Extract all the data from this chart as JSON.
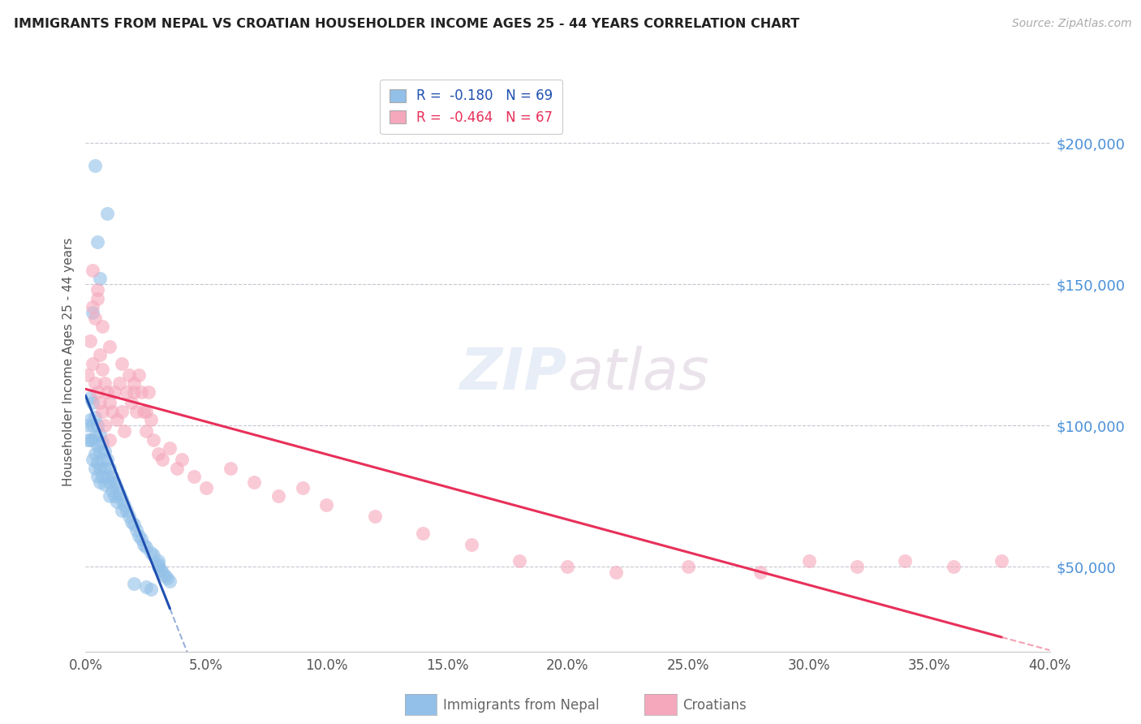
{
  "title": "IMMIGRANTS FROM NEPAL VS CROATIAN HOUSEHOLDER INCOME AGES 25 - 44 YEARS CORRELATION CHART",
  "source": "Source: ZipAtlas.com",
  "ylabel": "Householder Income Ages 25 - 44 years",
  "xlim": [
    0.0,
    0.4
  ],
  "ylim": [
    20000,
    225000
  ],
  "yticks": [
    50000,
    100000,
    150000,
    200000
  ],
  "xticks": [
    0.0,
    0.05,
    0.1,
    0.15,
    0.2,
    0.25,
    0.3,
    0.35,
    0.4
  ],
  "nepal_r": -0.18,
  "nepal_n": 69,
  "croatian_r": -0.464,
  "croatian_n": 67,
  "nepal_color": "#92c0e8",
  "croatian_color": "#f5a8bc",
  "nepal_line_color": "#2050b0",
  "croatian_line_color": "#e8305a",
  "background_color": "#ffffff",
  "grid_color": "#c0c0cc",
  "title_color": "#222222",
  "right_tick_color": "#4a90d9",
  "bottom_tick_color": "#555555",
  "nepal_x": [
    0.001,
    0.001,
    0.002,
    0.002,
    0.002,
    0.003,
    0.003,
    0.003,
    0.003,
    0.004,
    0.004,
    0.004,
    0.004,
    0.005,
    0.005,
    0.005,
    0.005,
    0.006,
    0.006,
    0.006,
    0.006,
    0.007,
    0.007,
    0.007,
    0.008,
    0.008,
    0.008,
    0.009,
    0.009,
    0.01,
    0.01,
    0.01,
    0.011,
    0.011,
    0.012,
    0.012,
    0.013,
    0.013,
    0.014,
    0.015,
    0.015,
    0.016,
    0.017,
    0.018,
    0.019,
    0.02,
    0.021,
    0.022,
    0.023,
    0.024,
    0.025,
    0.027,
    0.028,
    0.03,
    0.03,
    0.03,
    0.031,
    0.032,
    0.033,
    0.034,
    0.035,
    0.02,
    0.025,
    0.027,
    0.009,
    0.005,
    0.006,
    0.004,
    0.003
  ],
  "nepal_y": [
    100000,
    95000,
    110000,
    102000,
    95000,
    108000,
    100000,
    95000,
    88000,
    103000,
    96000,
    90000,
    85000,
    100000,
    93000,
    87000,
    82000,
    97000,
    91000,
    85000,
    80000,
    94000,
    88000,
    82000,
    91000,
    85000,
    79000,
    88000,
    82000,
    85000,
    80000,
    75000,
    82000,
    77000,
    80000,
    75000,
    78000,
    73000,
    76000,
    74000,
    70000,
    72000,
    70000,
    68000,
    66000,
    65000,
    63000,
    61000,
    60000,
    58000,
    57000,
    55000,
    54000,
    52000,
    51000,
    50000,
    49000,
    48000,
    47000,
    46000,
    45000,
    44000,
    43000,
    42000,
    175000,
    165000,
    152000,
    192000,
    140000
  ],
  "croatian_x": [
    0.001,
    0.002,
    0.003,
    0.003,
    0.004,
    0.004,
    0.005,
    0.005,
    0.006,
    0.006,
    0.007,
    0.007,
    0.008,
    0.008,
    0.009,
    0.01,
    0.01,
    0.011,
    0.012,
    0.013,
    0.014,
    0.015,
    0.016,
    0.017,
    0.018,
    0.019,
    0.02,
    0.021,
    0.022,
    0.023,
    0.024,
    0.025,
    0.026,
    0.027,
    0.028,
    0.03,
    0.032,
    0.035,
    0.038,
    0.04,
    0.045,
    0.05,
    0.06,
    0.07,
    0.08,
    0.09,
    0.1,
    0.12,
    0.14,
    0.16,
    0.18,
    0.2,
    0.22,
    0.25,
    0.28,
    0.3,
    0.32,
    0.34,
    0.36,
    0.38,
    0.003,
    0.005,
    0.007,
    0.01,
    0.015,
    0.02,
    0.025
  ],
  "croatian_y": [
    118000,
    130000,
    122000,
    142000,
    115000,
    138000,
    112000,
    148000,
    125000,
    108000,
    120000,
    105000,
    115000,
    100000,
    112000,
    108000,
    95000,
    105000,
    112000,
    102000,
    115000,
    105000,
    98000,
    112000,
    118000,
    108000,
    115000,
    105000,
    118000,
    112000,
    105000,
    98000,
    112000,
    102000,
    95000,
    90000,
    88000,
    92000,
    85000,
    88000,
    82000,
    78000,
    85000,
    80000,
    75000,
    78000,
    72000,
    68000,
    62000,
    58000,
    52000,
    50000,
    48000,
    50000,
    48000,
    52000,
    50000,
    52000,
    50000,
    52000,
    155000,
    145000,
    135000,
    128000,
    122000,
    112000,
    105000
  ]
}
